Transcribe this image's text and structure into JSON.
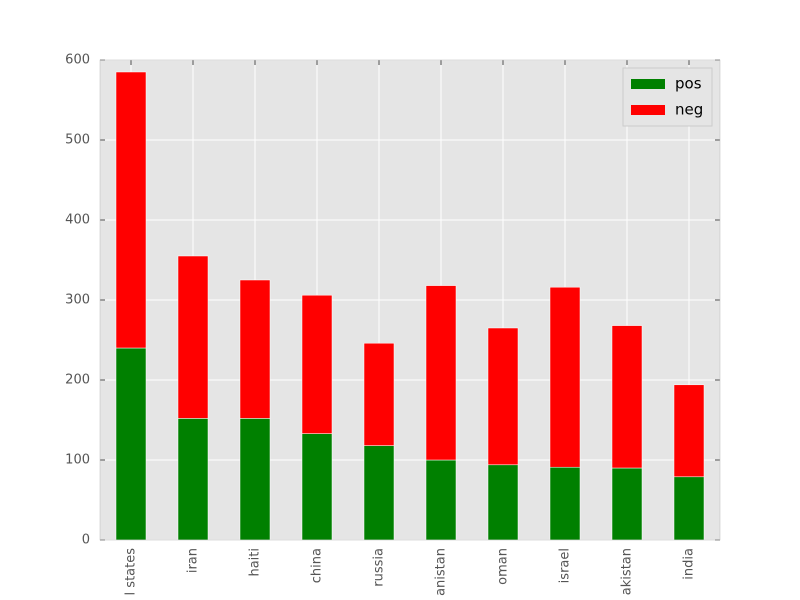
{
  "chart_data": {
    "type": "bar",
    "stacked": true,
    "categories": [
      "l states",
      "iran",
      "haiti",
      "china",
      "russia",
      "anistan",
      "oman",
      "israel",
      "akistan",
      "india"
    ],
    "series": [
      {
        "name": "pos",
        "color": "#008000",
        "values": [
          240,
          152,
          152,
          133,
          118,
          100,
          94,
          91,
          90,
          79
        ]
      },
      {
        "name": "neg",
        "color": "#ff0000",
        "values": [
          345,
          203,
          173,
          173,
          128,
          218,
          171,
          225,
          178,
          115
        ]
      }
    ],
    "ylim": [
      0,
      600
    ],
    "yticks": [
      0,
      100,
      200,
      300,
      400,
      500,
      600
    ],
    "grid": true,
    "legend": "upper right"
  }
}
